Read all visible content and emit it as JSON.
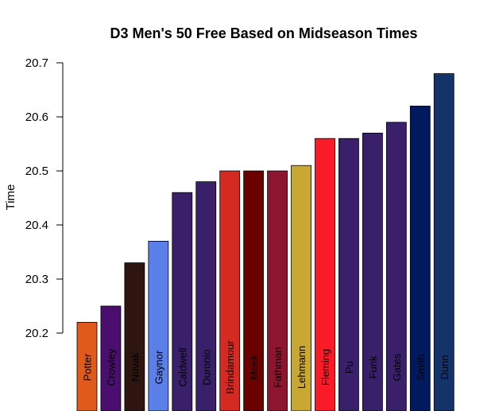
{
  "chart_data": {
    "type": "bar",
    "title": "D3 Men's 50 Free Based on Midseason Times",
    "xlabel": "",
    "ylabel": "Time",
    "ylim": [
      20.2,
      20.7
    ],
    "yticks": [
      "20.2",
      "20.3",
      "20.4",
      "20.5",
      "20.6",
      "20.7"
    ],
    "grid": false,
    "categories": [
      "Potter",
      "Crowley",
      "Novak",
      "Gaynor",
      "Caldwell",
      "Duronio",
      "Brindamour",
      "Meek",
      "Fathman",
      "Lehmann",
      "Fleming",
      "Pu",
      "Funk",
      "Gates",
      "Smith",
      "Dunn"
    ],
    "values": [
      20.22,
      20.25,
      20.33,
      20.37,
      20.46,
      20.48,
      20.5,
      20.5,
      20.5,
      20.51,
      20.56,
      20.56,
      20.57,
      20.59,
      20.62,
      20.68
    ],
    "colors": [
      "#E05A1B",
      "#4A0E6F",
      "#2E150F",
      "#5A7FE8",
      "#3A1F6B",
      "#3A1F6B",
      "#D42A22",
      "#6B0000",
      "#8E1530",
      "#C8A832",
      "#FA1A28",
      "#3A1F6B",
      "#3A1F6B",
      "#3A1F6B",
      "#001A60",
      "#14336A"
    ]
  }
}
